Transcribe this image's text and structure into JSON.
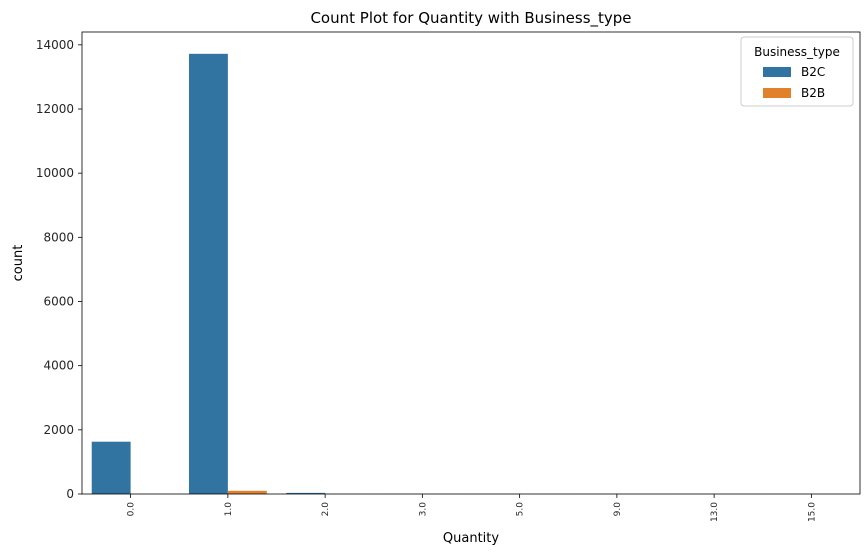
{
  "chart_data": {
    "type": "bar",
    "title": "Count Plot for Quantity with Business_type",
    "xlabel": "Quantity",
    "ylabel": "count",
    "categories": [
      "0.0",
      "1.0",
      "2.0",
      "3.0",
      "5.0",
      "9.0",
      "13.0",
      "15.0"
    ],
    "ylim": [
      0,
      14400
    ],
    "yticks": [
      0,
      2000,
      4000,
      6000,
      8000,
      10000,
      12000,
      14000
    ],
    "legend": {
      "title": "Business_type",
      "position": "top-right"
    },
    "series": [
      {
        "name": "B2C",
        "color": "#3274a1",
        "values": [
          1630,
          13720,
          35,
          3,
          1,
          1,
          1,
          1
        ]
      },
      {
        "name": "B2B",
        "color": "#e1812c",
        "values": [
          1,
          100,
          5,
          1,
          0,
          0,
          0,
          0
        ]
      }
    ],
    "grid": false
  }
}
